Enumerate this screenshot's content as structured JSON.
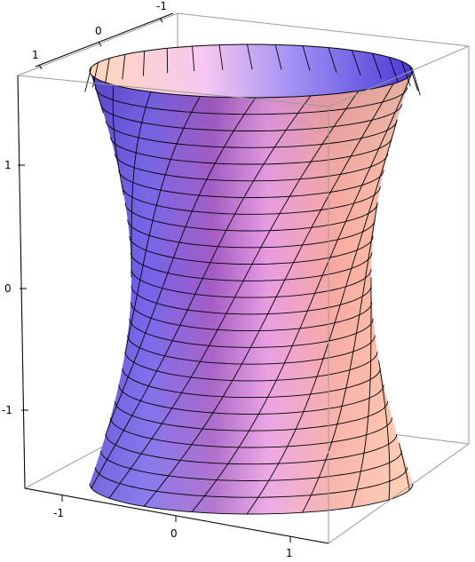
{
  "chart_data": {
    "type": "surface3d",
    "title": "",
    "surface": "hyperboloid of one sheet",
    "x_range": [
      -1.6,
      1.6
    ],
    "y_range": [
      -1.6,
      1.6
    ],
    "z_range": [
      -1.6,
      1.6
    ],
    "axes": {
      "top_back_ticks": [
        "-1",
        "0",
        "1"
      ],
      "left_vertical_ticks": [
        "1",
        "0",
        "-1"
      ],
      "bottom_front_ticks": [
        "-1",
        "0",
        "1"
      ]
    },
    "mesh": {
      "horizontal_rings": 24,
      "ruling_lines": 18
    },
    "colors": {
      "frame": "#9a9a9a",
      "mesh": "#000000",
      "violet": "#6a5ae8",
      "pink": "#f0b8f0",
      "peach": "#ffc0a0",
      "magenta": "#b24aa6"
    }
  }
}
